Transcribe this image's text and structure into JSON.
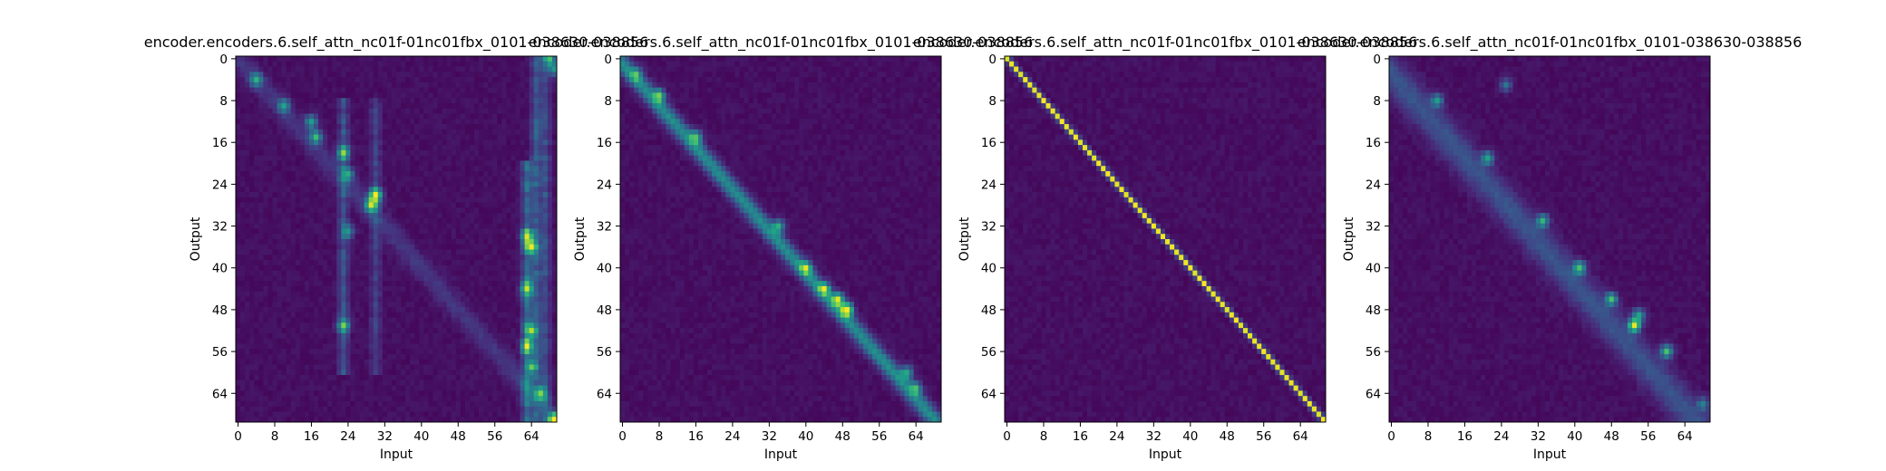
{
  "chart_data": [
    {
      "type": "heatmap",
      "title": "encoder.encoders.6.self_attn_nc01f-01nc01fbx_0101-038630-038856",
      "xlabel": "Input",
      "ylabel": "Output",
      "x_ticks": [
        "0",
        "8",
        "16",
        "24",
        "32",
        "40",
        "48",
        "56",
        "64"
      ],
      "y_ticks": [
        "0",
        "8",
        "16",
        "24",
        "32",
        "40",
        "48",
        "56",
        "64"
      ],
      "xlim": [
        0,
        70
      ],
      "ylim": [
        0,
        70
      ],
      "colormap": "viridis",
      "cells": {
        "rows": 70,
        "cols": 70
      },
      "pattern": "diffuse: weak diagonal near origin, vertical bands at input 23 and 30, strong vertical band at input 62-67",
      "hotspots": [
        [
          0,
          68,
          0.55
        ],
        [
          4,
          4,
          0.5
        ],
        [
          9,
          10,
          0.45
        ],
        [
          12,
          16,
          0.5
        ],
        [
          15,
          17,
          0.55
        ],
        [
          18,
          23,
          0.6
        ],
        [
          22,
          24,
          0.4
        ],
        [
          26,
          30,
          0.85
        ],
        [
          28,
          29,
          0.7
        ],
        [
          33,
          24,
          0.4
        ],
        [
          34,
          63,
          0.6
        ],
        [
          36,
          64,
          0.65
        ],
        [
          44,
          63,
          0.65
        ],
        [
          51,
          23,
          0.55
        ],
        [
          52,
          64,
          0.6
        ],
        [
          55,
          63,
          0.6
        ],
        [
          59,
          64,
          0.5
        ],
        [
          64,
          66,
          0.55
        ],
        [
          69,
          69,
          0.95
        ],
        [
          2,
          69,
          0.45
        ]
      ],
      "bands": [
        {
          "axis": "col",
          "index": 23,
          "from": 8,
          "to": 60,
          "strength": 0.28
        },
        {
          "axis": "col",
          "index": 30,
          "from": 8,
          "to": 60,
          "strength": 0.2
        },
        {
          "axis": "col",
          "index": 63,
          "from": 20,
          "to": 69,
          "strength": 0.38
        },
        {
          "axis": "col",
          "index": 65,
          "from": 0,
          "to": 69,
          "strength": 0.3
        },
        {
          "axis": "col",
          "index": 67,
          "from": 0,
          "to": 69,
          "strength": 0.25
        }
      ],
      "diagonal": {
        "strength": 0.12,
        "offset": 0,
        "width": 2.0
      }
    },
    {
      "type": "heatmap",
      "title": "encoder.encoders.6.self_attn_nc01f-01nc01fbx_0101-038630-038856",
      "xlabel": "Input",
      "ylabel": "Output",
      "x_ticks": [
        "0",
        "8",
        "16",
        "24",
        "32",
        "40",
        "48",
        "56",
        "64"
      ],
      "y_ticks": [
        "0",
        "8",
        "16",
        "24",
        "32",
        "40",
        "48",
        "56",
        "64"
      ],
      "xlim": [
        0,
        70
      ],
      "ylim": [
        0,
        70
      ],
      "colormap": "viridis",
      "cells": {
        "rows": 70,
        "cols": 70
      },
      "pattern": "blurry main diagonal with bright spots",
      "hotspots": [
        [
          7,
          8,
          0.55
        ],
        [
          15,
          16,
          0.5
        ],
        [
          32,
          34,
          0.5
        ],
        [
          44,
          44,
          0.55
        ],
        [
          46,
          47,
          0.7
        ],
        [
          48,
          49,
          0.85
        ],
        [
          40,
          40,
          0.55
        ],
        [
          60,
          62,
          0.5
        ],
        [
          63,
          64,
          0.45
        ],
        [
          3,
          3,
          0.35
        ]
      ],
      "bands": [],
      "diagonal": {
        "strength": 0.45,
        "offset": -1,
        "width": 1.6
      }
    },
    {
      "type": "heatmap",
      "title": "encoder.encoders.6.self_attn_nc01f-01nc01fbx_0101-038630-038856",
      "xlabel": "Input",
      "ylabel": "Output",
      "x_ticks": [
        "0",
        "8",
        "16",
        "24",
        "32",
        "40",
        "48",
        "56",
        "64"
      ],
      "y_ticks": [
        "0",
        "8",
        "16",
        "24",
        "32",
        "40",
        "48",
        "56",
        "64"
      ],
      "xlim": [
        0,
        70
      ],
      "ylim": [
        0,
        70
      ],
      "colormap": "viridis",
      "cells": {
        "rows": 70,
        "cols": 70
      },
      "pattern": "sharp bright main diagonal",
      "hotspots": [],
      "bands": [],
      "diagonal": {
        "strength": 0.93,
        "offset": 0,
        "width": 0.5
      }
    },
    {
      "type": "heatmap",
      "title": "encoder.encoders.6.self_attn_nc01f-01nc01fbx_0101-038630-038856",
      "xlabel": "Input",
      "ylabel": "Output",
      "x_ticks": [
        "0",
        "8",
        "16",
        "24",
        "32",
        "40",
        "48",
        "56",
        "64"
      ],
      "y_ticks": [
        "0",
        "8",
        "16",
        "24",
        "32",
        "40",
        "48",
        "56",
        "64"
      ],
      "xlim": [
        0,
        70
      ],
      "ylim": [
        0,
        70
      ],
      "colormap": "viridis",
      "cells": {
        "rows": 70,
        "cols": 70
      },
      "pattern": "diffuse lagged diagonal with bright clusters",
      "hotspots": [
        [
          8,
          10,
          0.45
        ],
        [
          19,
          21,
          0.5
        ],
        [
          31,
          33,
          0.55
        ],
        [
          40,
          41,
          0.6
        ],
        [
          46,
          48,
          0.6
        ],
        [
          51,
          53,
          0.85
        ],
        [
          49,
          54,
          0.5
        ],
        [
          56,
          60,
          0.65
        ],
        [
          5,
          25,
          0.35
        ],
        [
          66,
          68,
          0.35
        ]
      ],
      "bands": [],
      "diagonal": {
        "strength": 0.22,
        "offset": -3,
        "width": 3.0
      }
    }
  ]
}
